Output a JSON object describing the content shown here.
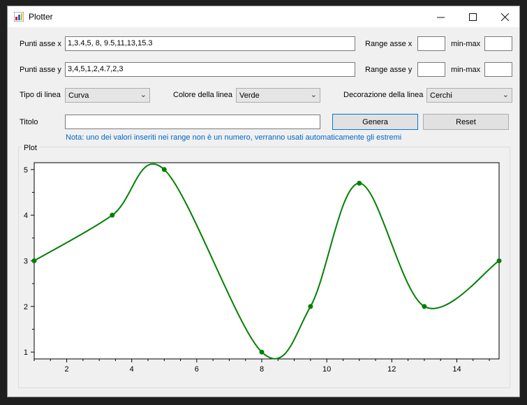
{
  "window": {
    "title": "Plotter",
    "minimize_icon": "minimize-icon",
    "maximize_icon": "maximize-icon",
    "close_icon": "close-icon"
  },
  "form": {
    "x_points_label": "Punti asse x",
    "x_points_value": "1,3.4,5, 8, 9.5,11,13,15.3",
    "y_points_label": "Punti asse y",
    "y_points_value": "3,4,5,1,2,4.7,2,3",
    "range_x_label": "Range asse x",
    "range_x_value": "",
    "range_x_minmax_label": "min-max",
    "range_x_minmax_value": "",
    "range_y_label": "Range asse y",
    "range_y_value": "",
    "range_y_minmax_label": "min-max",
    "range_y_minmax_value": "",
    "line_type_label": "Tipo di linea",
    "line_type_value": "Curva",
    "line_color_label": "Colore della linea",
    "line_color_value": "Verde",
    "decoration_label": "Decorazione della linea",
    "decoration_value": "Cerchi",
    "title_label": "Titolo",
    "title_value": "",
    "generate_button": "Genera",
    "reset_button": "Reset",
    "note": "Nota: uno dei valori inseriti nei range non è un numero, verranno usati automaticamente gli estremi"
  },
  "plot_group_label": "Plot",
  "chart_data": {
    "type": "line",
    "x": [
      1,
      3.4,
      5,
      8,
      9.5,
      11,
      13,
      15.3
    ],
    "y": [
      3,
      4,
      5,
      1,
      2,
      4.7,
      2,
      3
    ],
    "xlim": [
      1,
      15.3
    ],
    "ylim": [
      0.85,
      5.15
    ],
    "x_ticks": [
      2,
      4,
      6,
      8,
      10,
      12,
      14
    ],
    "y_ticks": [
      1,
      2,
      3,
      4,
      5
    ],
    "line_color": "#008000",
    "marker": "circle",
    "interpolation": "smooth-curve",
    "grid": false
  }
}
